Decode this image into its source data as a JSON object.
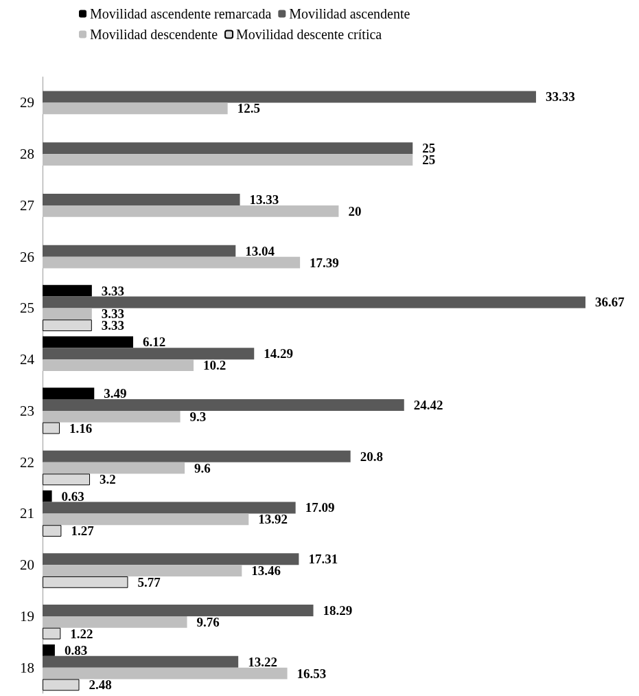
{
  "chart_data": {
    "type": "bar",
    "orientation": "horizontal",
    "categories": [
      "29",
      "28",
      "27",
      "26",
      "25",
      "24",
      "23",
      "22",
      "21",
      "20",
      "19",
      "18"
    ],
    "series": [
      {
        "name": "Movilidad ascendente remarcada",
        "color": "#000000",
        "values": [
          null,
          null,
          null,
          null,
          3.33,
          6.12,
          3.49,
          null,
          0.63,
          null,
          null,
          0.83
        ]
      },
      {
        "name": "Movilidad ascendente",
        "color": "#595959",
        "values": [
          33.33,
          25,
          13.33,
          13.04,
          36.67,
          14.29,
          24.42,
          20.8,
          17.09,
          17.31,
          18.29,
          13.22
        ]
      },
      {
        "name": "Movilidad descendente",
        "color": "#bfbfbf",
        "values": [
          12.5,
          25,
          20,
          17.39,
          3.33,
          10.2,
          9.3,
          9.6,
          13.92,
          13.46,
          9.76,
          16.53
        ]
      },
      {
        "name": "Movilidad descente crítica",
        "color": "#d9d9d9",
        "values": [
          null,
          null,
          null,
          null,
          3.33,
          null,
          1.16,
          3.2,
          1.27,
          5.77,
          1.22,
          2.48
        ]
      }
    ],
    "data_labels": true,
    "legend": "top",
    "tick_labels": "y",
    "grid": false
  }
}
